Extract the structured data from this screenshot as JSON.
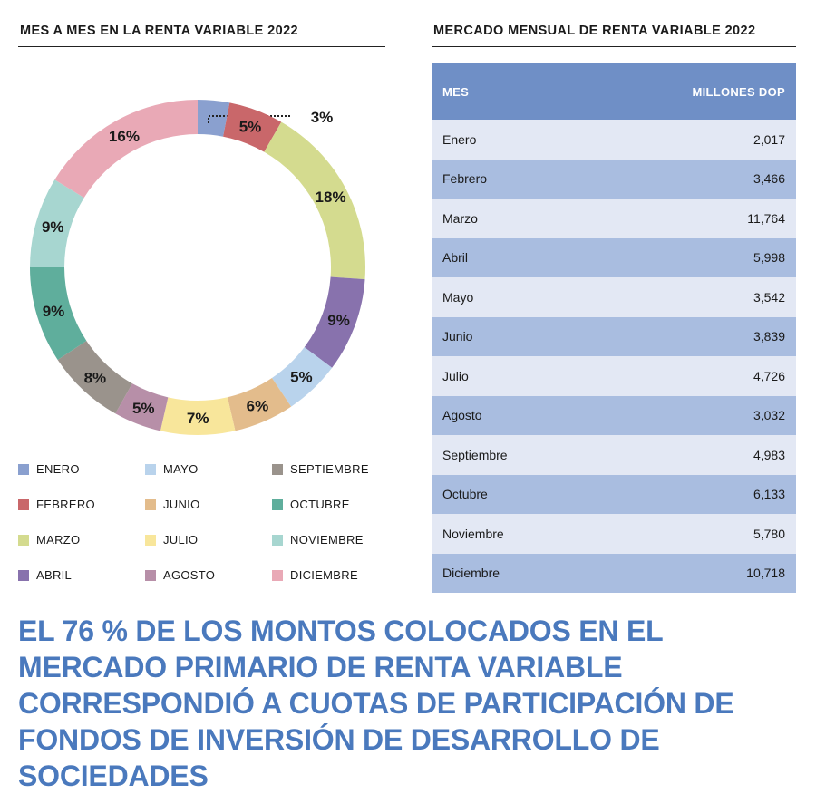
{
  "left_panel": {
    "title": "MES A MES EN LA RENTA VARIABLE 2022"
  },
  "right_panel": {
    "title": "MERCADO MENSUAL DE RENTA VARIABLE 2022"
  },
  "chart_data": [
    {
      "type": "pie",
      "title": "MES A MES EN LA RENTA VARIABLE 2022",
      "categories": [
        "ENERO",
        "FEBRERO",
        "MARZO",
        "ABRIL",
        "MAYO",
        "JUNIO",
        "JULIO",
        "AGOSTO",
        "SEPTIEMBRE",
        "OCTUBRE",
        "NOVIEMBRE",
        "DICIEMBRE"
      ],
      "values": [
        2017,
        3466,
        11764,
        5998,
        3542,
        3839,
        4726,
        3032,
        4983,
        6133,
        5780,
        10718
      ],
      "labels": [
        "3%",
        "5%",
        "18%",
        "9%",
        "5%",
        "6%",
        "7%",
        "5%",
        "8%",
        "9%",
        "9%",
        "16%"
      ],
      "colors": [
        "#8aa0cf",
        "#c9676a",
        "#d4db8f",
        "#8872ad",
        "#b9d3ec",
        "#e3bc8c",
        "#f8e69b",
        "#b78fa8",
        "#9a938c",
        "#5fae9c",
        "#a7d6d0",
        "#e9a9b6"
      ],
      "legend_position": "bottom"
    },
    {
      "type": "table",
      "title": "MERCADO MENSUAL DE RENTA VARIABLE 2022",
      "columns": [
        "MES",
        "MILLONES DOP"
      ],
      "rows": [
        [
          "Enero",
          "2,017"
        ],
        [
          "Febrero",
          "3,466"
        ],
        [
          "Marzo",
          "11,764"
        ],
        [
          "Abril",
          "5,998"
        ],
        [
          "Mayo",
          "3,542"
        ],
        [
          "Junio",
          "3,839"
        ],
        [
          "Julio",
          "4,726"
        ],
        [
          "Agosto",
          "3,032"
        ],
        [
          "Septiembre",
          "4,983"
        ],
        [
          "Octubre",
          "6,133"
        ],
        [
          "Noviembre",
          "5,780"
        ],
        [
          "Diciembre",
          "10,718"
        ]
      ]
    }
  ],
  "headline": "EL 76 % DE LOS MONTOS COLOCADOS EN EL MERCADO PRIMARIO DE RENTA VARIABLE CORRESPONDIÓ A CUOTAS DE PARTICIPACIÓN DE FONDOS DE INVERSIÓN DE DESARROLLO DE SOCIEDADES"
}
